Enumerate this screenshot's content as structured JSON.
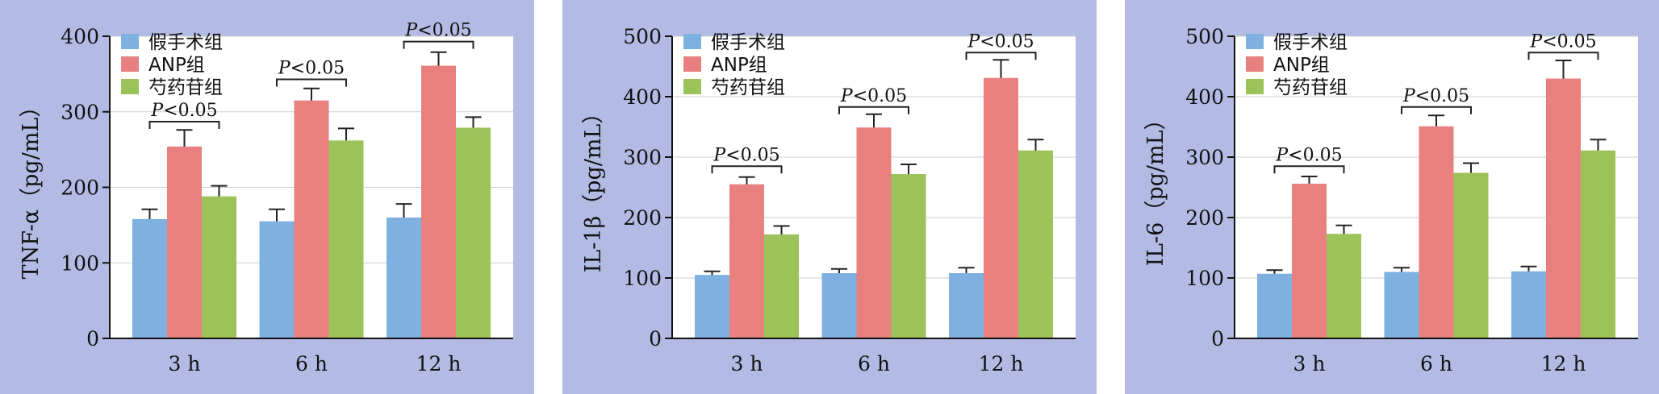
{
  "chart_data": [
    {
      "type": "bar",
      "ylabel": "TNF-α（pg/mL）",
      "ylim": [
        0,
        400
      ],
      "yticks": [
        0,
        100,
        200,
        300,
        400
      ],
      "categories": [
        "3 h",
        "6 h",
        "12 h"
      ],
      "series": [
        {
          "name": "假手术组",
          "color": "#7eb0e0",
          "values": [
            158,
            155,
            160
          ],
          "errors": [
            13,
            16,
            18
          ]
        },
        {
          "name": "ANP组",
          "color": "#e88080",
          "values": [
            254,
            315,
            361
          ],
          "errors": [
            22,
            16,
            18
          ]
        },
        {
          "name": "芍药苷组",
          "color": "#9bc35a",
          "values": [
            188,
            262,
            279
          ],
          "errors": [
            14,
            16,
            14
          ]
        }
      ],
      "significance": [
        {
          "category": 0,
          "from_series": 0,
          "to_series": 2,
          "y": 287,
          "label_p": "P",
          "label_rest": "<0.05"
        },
        {
          "category": 1,
          "from_series": 0,
          "to_series": 2,
          "y": 343,
          "label_p": "P",
          "label_rest": "<0.05"
        },
        {
          "category": 2,
          "from_series": 0,
          "to_series": 2,
          "y": 393,
          "label_p": "P",
          "label_rest": "<0.05"
        }
      ],
      "legend_position": "top-left"
    },
    {
      "type": "bar",
      "ylabel": "IL-1β（pg/mL）",
      "ylim": [
        0,
        500
      ],
      "yticks": [
        0,
        100,
        200,
        300,
        400,
        500
      ],
      "categories": [
        "3 h",
        "6 h",
        "12 h"
      ],
      "series": [
        {
          "name": "假手术组",
          "color": "#7eb0e0",
          "values": [
            105,
            108,
            108
          ],
          "errors": [
            6,
            7,
            9
          ]
        },
        {
          "name": "ANP组",
          "color": "#e88080",
          "values": [
            255,
            349,
            431
          ],
          "errors": [
            12,
            22,
            30
          ]
        },
        {
          "name": "芍药苷组",
          "color": "#9bc35a",
          "values": [
            172,
            272,
            311
          ],
          "errors": [
            14,
            16,
            18
          ]
        }
      ],
      "significance": [
        {
          "category": 0,
          "from_series": 0,
          "to_series": 2,
          "y": 285,
          "label_p": "P",
          "label_rest": "<0.05"
        },
        {
          "category": 1,
          "from_series": 0,
          "to_series": 2,
          "y": 383,
          "label_p": "P",
          "label_rest": "<0.05"
        },
        {
          "category": 2,
          "from_series": 0,
          "to_series": 2,
          "y": 473,
          "label_p": "P",
          "label_rest": "<0.05"
        }
      ],
      "legend_position": "top-left"
    },
    {
      "type": "bar",
      "ylabel": "IL-6（pg/mL）",
      "ylim": [
        0,
        500
      ],
      "yticks": [
        0,
        100,
        200,
        300,
        400,
        500
      ],
      "categories": [
        "3 h",
        "6 h",
        "12 h"
      ],
      "series": [
        {
          "name": "假手术组",
          "color": "#7eb0e0",
          "values": [
            107,
            110,
            111
          ],
          "errors": [
            6,
            7,
            8
          ]
        },
        {
          "name": "ANP组",
          "color": "#e88080",
          "values": [
            256,
            351,
            430
          ],
          "errors": [
            12,
            18,
            30
          ]
        },
        {
          "name": "芍药苷组",
          "color": "#9bc35a",
          "values": [
            173,
            274,
            311
          ],
          "errors": [
            14,
            16,
            18
          ]
        }
      ],
      "significance": [
        {
          "category": 0,
          "from_series": 0,
          "to_series": 2,
          "y": 285,
          "label_p": "P",
          "label_rest": "<0.05"
        },
        {
          "category": 1,
          "from_series": 0,
          "to_series": 2,
          "y": 383,
          "label_p": "P",
          "label_rest": "<0.05"
        },
        {
          "category": 2,
          "from_series": 0,
          "to_series": 2,
          "y": 473,
          "label_p": "P",
          "label_rest": "<0.05"
        }
      ],
      "legend_position": "top-left"
    }
  ]
}
